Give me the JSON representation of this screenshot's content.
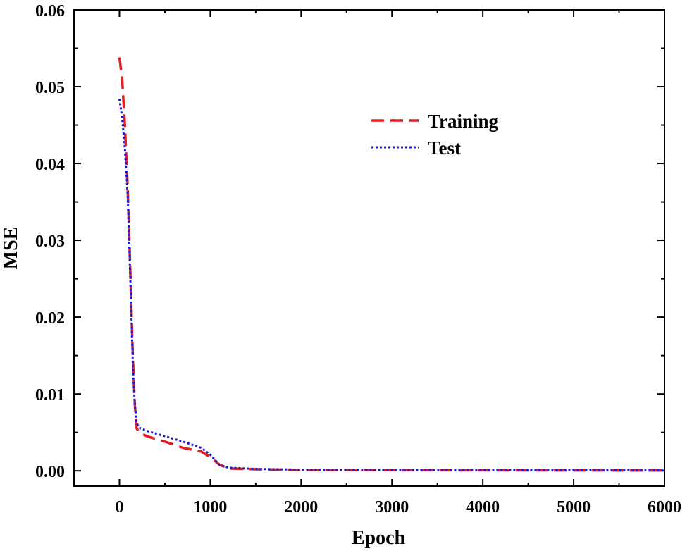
{
  "chart_data": {
    "type": "line",
    "xlabel": "Epoch",
    "ylabel": "MSE",
    "xlim": [
      -500,
      6000
    ],
    "ylim": [
      -0.002,
      0.06
    ],
    "xticks": [
      0,
      1000,
      2000,
      3000,
      4000,
      5000,
      6000
    ],
    "xtick_labels": [
      "0",
      "1000",
      "2000",
      "3000",
      "4000",
      "5000",
      "6000"
    ],
    "yticks": [
      0.0,
      0.01,
      0.02,
      0.03,
      0.04,
      0.05,
      0.06
    ],
    "ytick_labels": [
      "0.00",
      "0.01",
      "0.02",
      "0.03",
      "0.04",
      "0.05",
      "0.06"
    ],
    "grid": false,
    "legend": "upper-center",
    "series": [
      {
        "name": "Training",
        "style": "dashed",
        "color": "#e02020",
        "x": [
          0,
          30,
          60,
          90,
          110,
          130,
          150,
          170,
          190,
          220,
          300,
          500,
          700,
          900,
          1000,
          1100,
          1200,
          1500,
          2000,
          3000,
          4000,
          5000,
          6000
        ],
        "y": [
          0.0538,
          0.051,
          0.045,
          0.037,
          0.03,
          0.022,
          0.014,
          0.0085,
          0.0055,
          0.005,
          0.0045,
          0.0038,
          0.003,
          0.0025,
          0.0018,
          0.0008,
          0.0003,
          0.0002,
          0.00012,
          8e-05,
          6e-05,
          5e-05,
          4e-05
        ]
      },
      {
        "name": "Test",
        "style": "dotted",
        "color": "#1a1acc",
        "x": [
          0,
          30,
          60,
          90,
          110,
          130,
          150,
          170,
          190,
          220,
          300,
          500,
          700,
          900,
          1000,
          1100,
          1200,
          1500,
          2000,
          3000,
          4000,
          5000,
          6000
        ],
        "y": [
          0.0484,
          0.046,
          0.042,
          0.036,
          0.029,
          0.021,
          0.013,
          0.0085,
          0.0062,
          0.0056,
          0.0052,
          0.0045,
          0.0038,
          0.003,
          0.0021,
          0.0008,
          0.0004,
          0.00025,
          0.00015,
          0.0001,
          8e-05,
          6e-05,
          5e-05
        ]
      }
    ]
  }
}
